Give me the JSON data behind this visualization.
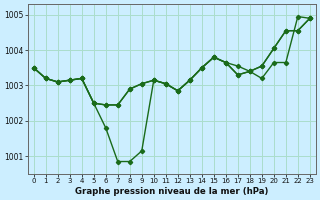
{
  "xlabel": "Graphe pression niveau de la mer (hPa)",
  "background_color": "#cceeff",
  "grid_color": "#aaddcc",
  "line_color": "#1a6b1a",
  "x": [
    0,
    1,
    2,
    3,
    4,
    5,
    6,
    7,
    8,
    9,
    10,
    11,
    12,
    13,
    14,
    15,
    16,
    17,
    18,
    19,
    20,
    21,
    22,
    23
  ],
  "line1": [
    1003.5,
    1003.2,
    1003.1,
    1003.15,
    1003.2,
    1002.5,
    1002.45,
    1002.45,
    1002.9,
    1003.05,
    1003.15,
    1003.05,
    1002.85,
    1003.15,
    1003.5,
    1003.8,
    1003.65,
    1003.3,
    1003.4,
    1003.55,
    1004.05,
    1004.55,
    1004.55,
    1004.9
  ],
  "line2": [
    1003.5,
    1003.2,
    1003.1,
    1003.15,
    1003.2,
    1002.5,
    1001.8,
    1000.85,
    1000.85,
    1001.15,
    1003.15,
    1003.05,
    1002.85,
    1003.15,
    1003.5,
    1003.8,
    1003.65,
    1003.3,
    1003.4,
    1003.2,
    1003.65,
    1003.65,
    1004.95,
    1004.9
  ],
  "line3": [
    1003.5,
    1003.2,
    1003.1,
    1003.15,
    1003.2,
    1002.5,
    1002.45,
    1002.45,
    1002.9,
    1003.05,
    1003.15,
    1003.05,
    1002.85,
    1003.15,
    1003.5,
    1003.8,
    1003.65,
    1003.55,
    1003.4,
    1003.55,
    1004.05,
    1004.55,
    1004.55,
    1004.9
  ],
  "ylim": [
    1000.5,
    1005.3
  ],
  "yticks": [
    1001,
    1002,
    1003,
    1004,
    1005
  ],
  "marker": "D",
  "marker_size": 2.2,
  "line_width": 1.0
}
